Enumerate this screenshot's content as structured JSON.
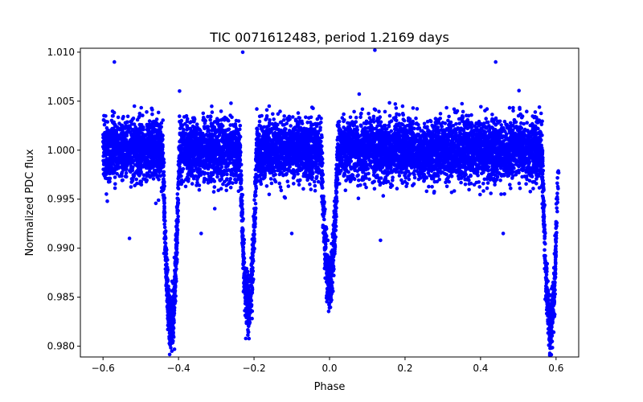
{
  "chart_data": {
    "type": "scatter",
    "title": "TIC 0071612483, period 1.2169 days",
    "xlabel": "Phase",
    "ylabel": "Normalized PDC flux",
    "xlim": [
      -0.66,
      0.66
    ],
    "ylim": [
      0.9789,
      1.0104
    ],
    "x_ticks": [
      -0.6,
      -0.4,
      -0.2,
      0.0,
      0.2,
      0.4,
      0.6
    ],
    "x_tick_labels": [
      "−0.6",
      "−0.4",
      "−0.2",
      "0.0",
      "0.2",
      "0.4",
      "0.6"
    ],
    "y_ticks": [
      0.98,
      0.985,
      0.99,
      0.995,
      1.0,
      1.005,
      1.01
    ],
    "y_tick_labels": [
      "0.980",
      "0.985",
      "0.990",
      "0.995",
      "1.000",
      "1.005",
      "1.010"
    ],
    "marker_color": "#0000ff",
    "baseline_flux": 1.0,
    "baseline_scatter": 0.0015,
    "phase_range": [
      -0.6,
      0.6
    ],
    "point_count": 9000,
    "dips": [
      {
        "phase": -0.42,
        "min_flux": 0.9803
      },
      {
        "phase": -0.215,
        "min_flux": 0.9822
      },
      {
        "phase": 0.0,
        "min_flux": 0.9854
      },
      {
        "phase": 0.585,
        "min_flux": 0.9803
      }
    ],
    "notable_points": [
      {
        "x": 0.12,
        "y": 1.0102
      },
      {
        "x": -0.23,
        "y": 1.01
      },
      {
        "x": -0.57,
        "y": 1.009
      },
      {
        "x": 0.44,
        "y": 1.009
      },
      {
        "x": -0.34,
        "y": 0.9915
      },
      {
        "x": -0.1,
        "y": 0.9915
      },
      {
        "x": 0.135,
        "y": 0.9908
      },
      {
        "x": -0.53,
        "y": 0.991
      },
      {
        "x": 0.46,
        "y": 0.9915
      }
    ]
  }
}
